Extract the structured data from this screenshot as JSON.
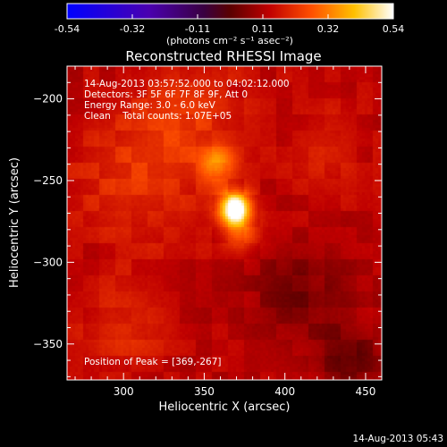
{
  "chart_data": {
    "type": "heatmap",
    "title": "Reconstructed RHESSI Image",
    "xlabel": "Heliocentric X (arcsec)",
    "ylabel": "Heliocentric Y (arcsec)",
    "xlim": [
      265,
      460
    ],
    "ylim": [
      -372,
      -180
    ],
    "x_ticks": [
      300,
      350,
      400,
      450
    ],
    "y_ticks": [
      -200,
      -250,
      -300,
      -350
    ],
    "colorbar": {
      "min": -0.54,
      "max": 0.54,
      "ticks": [
        "-0.54",
        "-0.32",
        "-0.11",
        "0.11",
        "0.32",
        "0.54"
      ],
      "unit_label": "(photons cm⁻² s⁻¹ asec⁻²)"
    },
    "peak": {
      "x": 369,
      "y": -267,
      "value": 0.54
    },
    "sources": [
      {
        "x": 369,
        "y": -267,
        "sigma": 7,
        "amp": 0.5
      },
      {
        "x": 358,
        "y": -240,
        "sigma": 8,
        "amp": 0.18
      },
      {
        "x": 372,
        "y": -283,
        "sigma": 8,
        "amp": 0.14
      },
      {
        "x": 310,
        "y": -245,
        "sigma": 30,
        "amp": 0.1
      },
      {
        "x": 345,
        "y": -205,
        "sigma": 22,
        "amp": 0.08
      },
      {
        "x": 300,
        "y": -340,
        "sigma": 20,
        "amp": 0.07
      },
      {
        "x": 425,
        "y": -230,
        "sigma": 18,
        "amp": 0.06
      },
      {
        "x": 410,
        "y": -320,
        "sigma": 22,
        "amp": -0.08
      },
      {
        "x": 440,
        "y": -360,
        "sigma": 15,
        "amp": -0.09
      }
    ],
    "background": 0.12,
    "grid": false
  },
  "annotations": {
    "time_range": "14-Aug-2013 03:57:52.000 to 04:02:12.000",
    "detectors": "Detectors: 3F 5F 6F 7F 8F 9F, Att 0",
    "energy": "Energy Range: 3.0 - 6.0 keV",
    "clean": "Clean    Total counts: 1.07E+05",
    "peak_position": "Position of Peak = [369,-267]",
    "timestamp": "14-Aug-2013 05:43"
  }
}
